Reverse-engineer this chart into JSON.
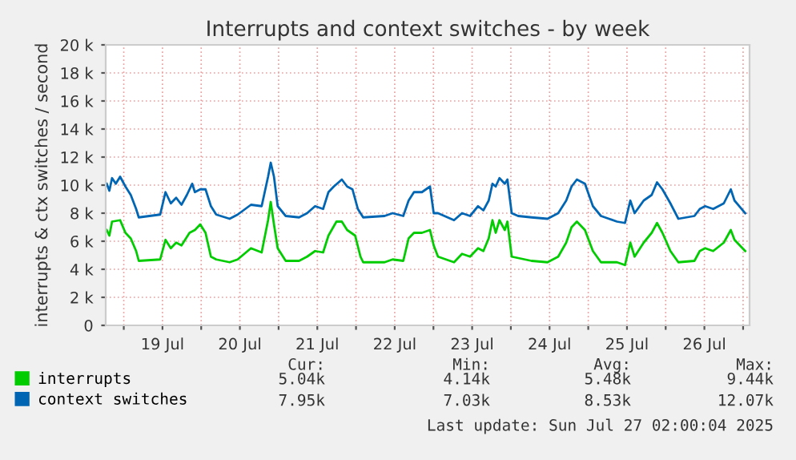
{
  "chart_data": {
    "type": "line",
    "title": "Interrupts and context switches - by week",
    "ylabel": "interrupts & ctx switches / second",
    "xlim": [
      "2025-07-18T18:24",
      "2025-07-27T02:00"
    ],
    "xticks": [
      {
        "value": "2025-07-19T00:00",
        "label": null
      },
      {
        "value": "2025-07-19T12:00",
        "label": "19 Jul"
      },
      {
        "value": "2025-07-20T00:00",
        "label": null
      },
      {
        "value": "2025-07-20T12:00",
        "label": "20 Jul"
      },
      {
        "value": "2025-07-21T00:00",
        "label": null
      },
      {
        "value": "2025-07-21T12:00",
        "label": "21 Jul"
      },
      {
        "value": "2025-07-22T00:00",
        "label": null
      },
      {
        "value": "2025-07-22T12:00",
        "label": "22 Jul"
      },
      {
        "value": "2025-07-23T00:00",
        "label": null
      },
      {
        "value": "2025-07-23T12:00",
        "label": "23 Jul"
      },
      {
        "value": "2025-07-24T00:00",
        "label": null
      },
      {
        "value": "2025-07-24T12:00",
        "label": "24 Jul"
      },
      {
        "value": "2025-07-25T00:00",
        "label": null
      },
      {
        "value": "2025-07-25T12:00",
        "label": "25 Jul"
      },
      {
        "value": "2025-07-26T00:00",
        "label": null
      },
      {
        "value": "2025-07-26T12:00",
        "label": "26 Jul"
      },
      {
        "value": "2025-07-27T00:00",
        "label": null
      }
    ],
    "ylim": [
      0,
      20
    ],
    "yticks": [
      0,
      {
        "value": 2,
        "label": "2 k"
      },
      {
        "value": 4,
        "label": "4 k"
      },
      {
        "value": 6,
        "label": "6 k"
      },
      {
        "value": 8,
        "label": "8 k"
      },
      {
        "value": 10,
        "label": "10 k"
      },
      {
        "value": 12,
        "label": "12 k"
      },
      {
        "value": 14,
        "label": "14 k"
      },
      {
        "value": 16,
        "label": "16 k"
      },
      {
        "value": 18,
        "label": "18 k"
      },
      {
        "value": 20,
        "label": "20 k"
      }
    ],
    "grid": true,
    "legend": "bottom",
    "series": [
      {
        "name": "interrupts",
        "color": "#00cc00",
        "x": [
          "2025-07-18T18:43",
          "2025-07-18T19:32",
          "2025-07-18T20:22",
          "2025-07-18T22:52",
          "2025-07-19T00:31",
          "2025-07-19T02:10",
          "2025-07-19T03:50",
          "2025-07-19T04:39",
          "2025-07-19T11:17",
          "2025-07-19T12:56",
          "2025-07-19T14:35",
          "2025-07-19T16:15",
          "2025-07-19T17:54",
          "2025-07-19T20:23",
          "2025-07-19T22:03",
          "2025-07-19T23:42",
          "2025-07-20T01:21",
          "2025-07-20T03:01",
          "2025-07-20T04:40",
          "2025-07-20T08:49",
          "2025-07-20T11:18",
          "2025-07-20T15:26",
          "2025-07-20T18:45",
          "2025-07-20T20:44",
          "2025-07-20T21:34",
          "2025-07-20T22:34",
          "2025-07-20T23:43",
          "2025-07-21T02:12",
          "2025-07-21T06:21",
          "2025-07-21T08:50",
          "2025-07-21T11:19",
          "2025-07-21T13:48",
          "2025-07-21T15:27",
          "2025-07-21T17:56",
          "2025-07-21T19:36",
          "2025-07-21T21:15",
          "2025-07-21T23:44",
          "2025-07-22T01:23",
          "2025-07-22T02:13",
          "2025-07-22T08:51",
          "2025-07-22T11:20",
          "2025-07-22T14:39",
          "2025-07-22T16:18",
          "2025-07-22T17:58",
          "2025-07-22T20:26",
          "2025-07-22T22:56",
          "2025-07-23T00:05",
          "2025-07-23T01:25",
          "2025-07-23T06:23",
          "2025-07-23T08:52",
          "2025-07-23T11:21",
          "2025-07-23T13:50",
          "2025-07-23T15:29",
          "2025-07-23T17:08",
          "2025-07-23T18:18",
          "2025-07-23T19:18",
          "2025-07-23T20:28",
          "2025-07-23T22:07",
          "2025-07-23T22:56",
          "2025-07-24T00:16",
          "2025-07-24T06:24",
          "2025-07-24T11:22",
          "2025-07-24T14:41",
          "2025-07-24T17:10",
          "2025-07-24T18:49",
          "2025-07-24T20:28",
          "2025-07-24T22:58",
          "2025-07-25T01:26",
          "2025-07-25T03:56",
          "2025-07-25T08:54",
          "2025-07-25T11:23",
          "2025-07-25T13:02",
          "2025-07-25T14:22",
          "2025-07-25T17:11",
          "2025-07-25T19:40",
          "2025-07-25T21:19",
          "2025-07-25T22:59",
          "2025-07-26T01:28",
          "2025-07-26T03:56",
          "2025-07-26T08:55",
          "2025-07-26T10:34",
          "2025-07-26T12:14",
          "2025-07-26T14:43",
          "2025-07-26T18:01",
          "2025-07-26T20:11",
          "2025-07-26T21:20",
          "2025-07-27T00:39"
        ],
        "values": [
          6.8,
          6.4,
          7.4,
          7.5,
          6.6,
          6.2,
          5.3,
          4.6,
          4.7,
          6.1,
          5.5,
          5.9,
          5.7,
          6.6,
          6.8,
          7.2,
          6.6,
          4.9,
          4.7,
          4.5,
          4.7,
          5.5,
          5.2,
          7.5,
          8.8,
          7.2,
          5.5,
          4.6,
          4.6,
          4.9,
          5.3,
          5.2,
          6.4,
          7.4,
          7.4,
          6.8,
          6.4,
          4.9,
          4.5,
          4.5,
          4.7,
          4.6,
          6.2,
          6.6,
          6.6,
          6.8,
          5.7,
          4.9,
          4.5,
          5.1,
          4.9,
          5.5,
          5.3,
          6.2,
          7.5,
          6.6,
          7.5,
          6.8,
          7.4,
          4.9,
          4.6,
          4.5,
          4.9,
          5.9,
          7.0,
          7.4,
          6.8,
          5.3,
          4.5,
          4.5,
          4.3,
          5.9,
          4.9,
          5.9,
          6.6,
          7.3,
          6.6,
          5.3,
          4.5,
          4.6,
          5.3,
          5.5,
          5.3,
          5.9,
          6.8,
          6.1,
          5.3
        ]
      },
      {
        "name": "context switches",
        "color": "#0066b3",
        "x": [
          "2025-07-18T18:43",
          "2025-07-18T19:32",
          "2025-07-18T20:22",
          "2025-07-18T21:32",
          "2025-07-18T22:52",
          "2025-07-19T00:31",
          "2025-07-19T02:10",
          "2025-07-19T03:50",
          "2025-07-19T04:39",
          "2025-07-19T11:17",
          "2025-07-19T12:56",
          "2025-07-19T14:35",
          "2025-07-19T16:15",
          "2025-07-19T17:54",
          "2025-07-19T19:34",
          "2025-07-19T21:13",
          "2025-07-19T22:03",
          "2025-07-19T23:42",
          "2025-07-20T01:21",
          "2025-07-20T03:01",
          "2025-07-20T04:40",
          "2025-07-20T08:49",
          "2025-07-20T11:18",
          "2025-07-20T15:26",
          "2025-07-20T18:45",
          "2025-07-20T20:44",
          "2025-07-20T21:34",
          "2025-07-20T22:34",
          "2025-07-20T23:43",
          "2025-07-21T02:12",
          "2025-07-21T06:21",
          "2025-07-21T08:50",
          "2025-07-21T11:19",
          "2025-07-21T13:48",
          "2025-07-21T15:27",
          "2025-07-21T17:07",
          "2025-07-21T19:36",
          "2025-07-21T21:15",
          "2025-07-21T22:54",
          "2025-07-22T00:34",
          "2025-07-22T02:13",
          "2025-07-22T08:51",
          "2025-07-22T11:20",
          "2025-07-22T14:39",
          "2025-07-22T16:18",
          "2025-07-22T17:58",
          "2025-07-22T20:26",
          "2025-07-22T22:56",
          "2025-07-23T00:05",
          "2025-07-23T01:25",
          "2025-07-23T06:23",
          "2025-07-23T08:52",
          "2025-07-23T11:21",
          "2025-07-23T13:50",
          "2025-07-23T15:29",
          "2025-07-23T17:08",
          "2025-07-23T18:18",
          "2025-07-23T19:18",
          "2025-07-23T20:28",
          "2025-07-23T22:07",
          "2025-07-23T22:56",
          "2025-07-24T00:16",
          "2025-07-24T02:15",
          "2025-07-24T06:24",
          "2025-07-24T11:22",
          "2025-07-24T14:41",
          "2025-07-24T17:10",
          "2025-07-24T18:49",
          "2025-07-24T20:28",
          "2025-07-24T22:58",
          "2025-07-25T01:26",
          "2025-07-25T03:56",
          "2025-07-25T06:25",
          "2025-07-25T08:54",
          "2025-07-25T11:23",
          "2025-07-25T13:02",
          "2025-07-25T14:22",
          "2025-07-25T17:11",
          "2025-07-25T19:40",
          "2025-07-25T21:19",
          "2025-07-25T22:59",
          "2025-07-26T01:28",
          "2025-07-26T03:56",
          "2025-07-26T08:55",
          "2025-07-26T10:34",
          "2025-07-26T12:14",
          "2025-07-26T14:43",
          "2025-07-26T18:01",
          "2025-07-26T20:11",
          "2025-07-26T21:20",
          "2025-07-27T00:39"
        ],
        "values": [
          10.1,
          9.6,
          10.5,
          10.1,
          10.6,
          9.9,
          9.3,
          8.3,
          7.7,
          7.9,
          9.5,
          8.7,
          9.1,
          8.6,
          9.3,
          10.1,
          9.5,
          9.7,
          9.7,
          8.5,
          7.9,
          7.6,
          7.9,
          8.6,
          8.5,
          10.6,
          11.6,
          10.6,
          8.5,
          7.8,
          7.7,
          8.0,
          8.5,
          8.3,
          9.5,
          9.9,
          10.4,
          9.9,
          9.7,
          8.3,
          7.7,
          7.8,
          8.0,
          7.8,
          8.9,
          9.5,
          9.5,
          9.9,
          8.0,
          8.0,
          7.5,
          8.0,
          7.8,
          8.5,
          8.2,
          8.9,
          10.1,
          9.9,
          10.5,
          10.1,
          10.4,
          8.0,
          7.8,
          7.7,
          7.6,
          8.0,
          8.9,
          9.9,
          10.4,
          10.1,
          8.5,
          7.8,
          7.6,
          7.4,
          7.3,
          8.9,
          8.0,
          8.9,
          9.3,
          10.2,
          9.7,
          8.7,
          7.6,
          7.8,
          8.3,
          8.5,
          8.3,
          8.7,
          9.7,
          8.9,
          8.0
        ]
      }
    ],
    "annotations": [
      "Cur:",
      "Min:",
      "Avg:",
      "Max:",
      "5.04k",
      "4.14k",
      "5.48k",
      "9.44k",
      "7.95k",
      "7.03k",
      "8.53k",
      "12.07k",
      "Last update: Sun Jul 27 02:00:04 2025"
    ]
  }
}
